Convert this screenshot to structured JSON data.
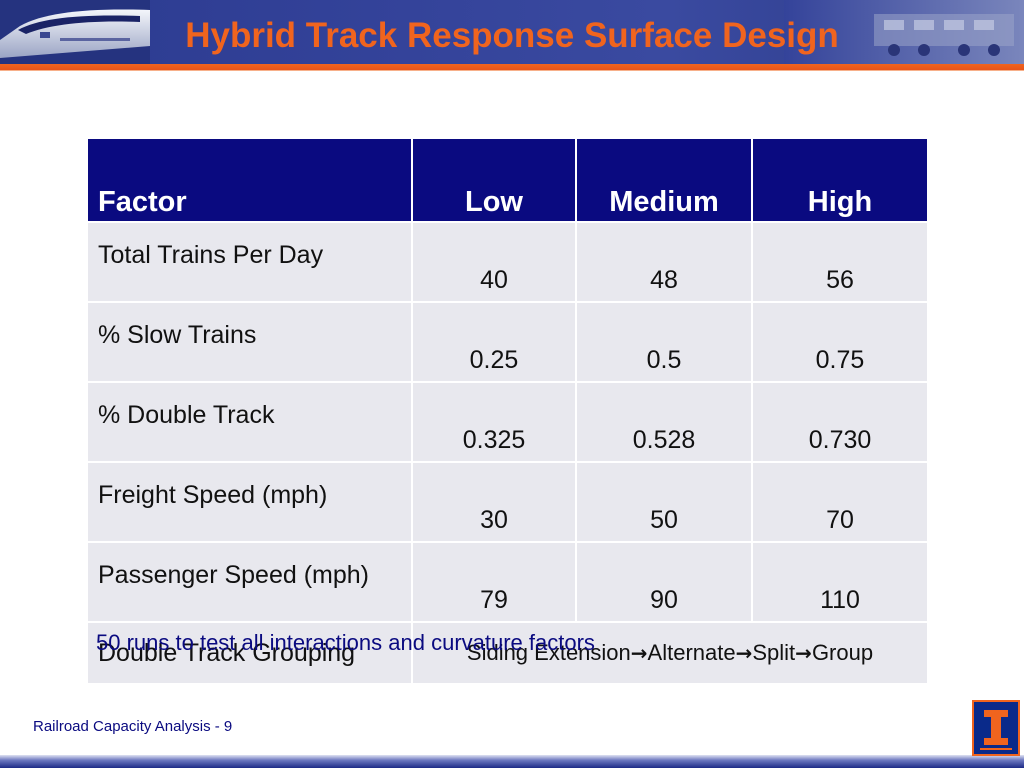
{
  "slide": {
    "title": "Hybrid Track Response Surface Design",
    "footer": "Railroad Capacity Analysis - 9",
    "note": "50 runs to test all interactions and curvature factors"
  },
  "table": {
    "headers": [
      "Factor",
      "Low",
      "Medium",
      "High"
    ],
    "rows": [
      {
        "factor": "Total Trains Per Day",
        "low": "40",
        "medium": "48",
        "high": "56"
      },
      {
        "factor": "% Slow Trains",
        "low": "0.25",
        "medium": "0.5",
        "high": "0.75"
      },
      {
        "factor": "% Double Track",
        "low": "0.325",
        "medium": "0.528",
        "high": "0.730"
      },
      {
        "factor": "Freight Speed (mph)",
        "low": "30",
        "medium": "50",
        "high": "70"
      },
      {
        "factor": "Passenger Speed (mph)",
        "low": "79",
        "medium": "90",
        "high": "110"
      }
    ],
    "grouping": {
      "factor": "Double Track Grouping",
      "steps": [
        "Siding Extension",
        "Alternate",
        "Split",
        "Group"
      ],
      "arrow": "→"
    }
  },
  "colors": {
    "title": "#f0641e",
    "header_bg": "#0a0a80",
    "cell_bg": "#e8e8ee",
    "banner": "#34439a",
    "accent_orange": "#f0641e"
  },
  "icons": {
    "banner_left": "bullet-train-icon",
    "banner_right": "locomotive-icon",
    "logo": "illinois-rail-logo-icon"
  }
}
